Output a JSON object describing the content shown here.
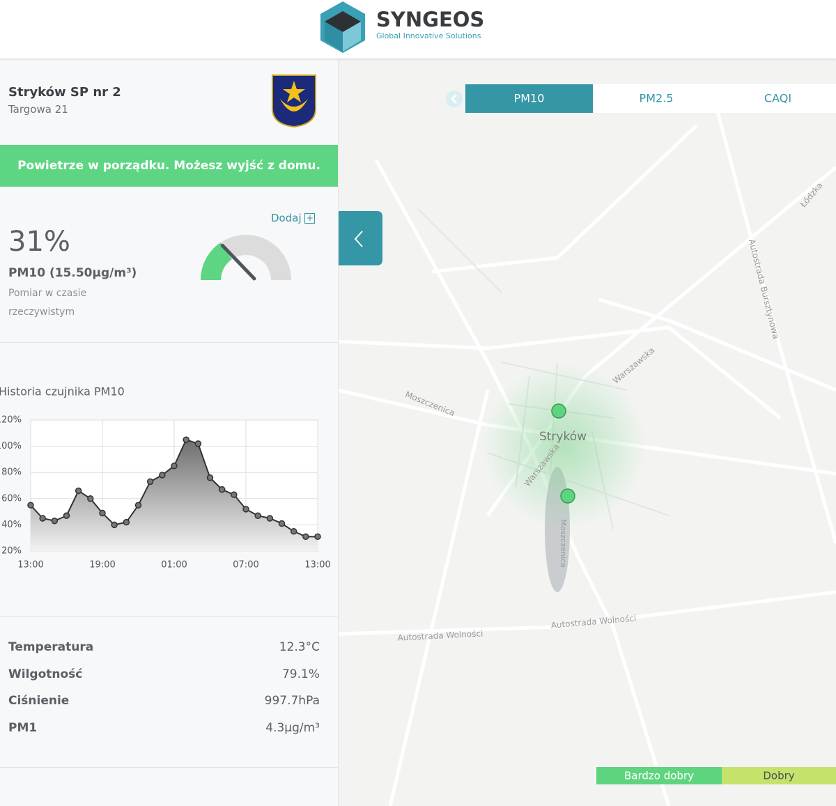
{
  "header": {
    "brand": "SYNGEOS",
    "tagline": "Global Innovative Solutions"
  },
  "station": {
    "name": "Stryków SP nr 2",
    "address": "Targowa 21"
  },
  "status": "Powietrze w porządku. Możesz wyjść z domu.",
  "reading": {
    "add": "Dodaj",
    "gauge": {
      "value": 31,
      "label": "31%"
    },
    "pollutant": "PM10 (15.50µg/m³)",
    "note": "Pomiar w czasie rzeczywistym"
  },
  "chart_data": {
    "type": "line",
    "title": "Historia czujnika PM10",
    "categories": [
      "13:00",
      null,
      null,
      null,
      null,
      null,
      "19:00",
      null,
      null,
      null,
      null,
      null,
      "01:00",
      null,
      null,
      null,
      null,
      null,
      "07:00",
      null,
      null,
      null,
      null,
      null,
      "13:00"
    ],
    "values": [
      55,
      45,
      43,
      47,
      66,
      60,
      49,
      40,
      42,
      55,
      73,
      78,
      85,
      105,
      102,
      76,
      67,
      63,
      52,
      47,
      45,
      41,
      35,
      31,
      31
    ],
    "color": "#333333",
    "ylim": [
      20,
      120
    ],
    "yticks": [
      {
        "value": 20,
        "label": "20%"
      },
      {
        "value": 40,
        "label": "40%"
      },
      {
        "value": 60,
        "label": "60%"
      },
      {
        "value": 80,
        "label": "80%"
      },
      {
        "value": 100,
        "label": "100%"
      },
      {
        "value": 120,
        "label": "120%"
      }
    ],
    "grid": true
  },
  "measurements": {
    "rows": [
      [
        "Temperatura",
        "12.3°C"
      ],
      [
        "Wilgotność",
        "79.1%"
      ],
      [
        "Ciśnienie",
        "997.7hPa"
      ],
      [
        "PM1",
        "4.3µg/m³"
      ]
    ]
  },
  "map": {
    "tabs": [
      "PM10",
      "PM2.5",
      "CAQI"
    ],
    "active_tab": 0,
    "labels": [
      "Stryków",
      "Warszawska",
      "Warszawska",
      "Moszczenica",
      "Moszczenica",
      "Autostrada Wolności",
      "Autostrada Wolności",
      "Autostrada Bursztynowa",
      "Łódzka"
    ],
    "legend": [
      "Bardzo dobry",
      "Dobry"
    ]
  }
}
